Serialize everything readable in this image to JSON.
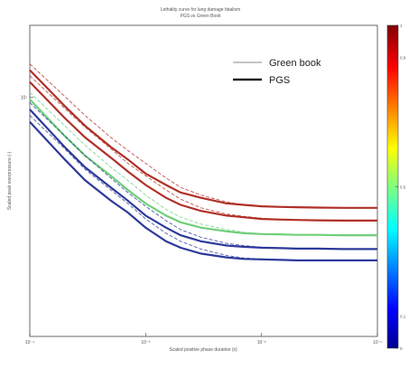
{
  "chart_data": {
    "type": "line",
    "title": "Lethality curve for lung damage fatalism",
    "subtitle": "PGS vs Green Book",
    "xlabel": "Scaled positive phase duration (s)",
    "ylabel": "Scaled peak overpressure (-)",
    "x_scale": "log",
    "y_scale": "log",
    "xlim": [
      0.0001,
      0.1
    ],
    "ylim": [
      1,
      20
    ],
    "x_ticks": [
      {
        "value": 0.0001,
        "label": "10⁻⁴"
      },
      {
        "value": 0.001,
        "label": "10⁻³"
      },
      {
        "value": 0.01,
        "label": "10⁻²"
      },
      {
        "value": 0.1,
        "label": "10⁻¹"
      }
    ],
    "y_ticks": [
      {
        "value": 10,
        "label": "10¹"
      }
    ],
    "legend": {
      "position": "top-right",
      "entries": [
        {
          "label": "Green book",
          "style": "thin"
        },
        {
          "label": "PGS",
          "style": "thick"
        }
      ]
    },
    "colorbar": {
      "range": [
        0,
        1
      ],
      "ticks": [
        {
          "value": 1.0,
          "label": "1"
        },
        {
          "value": 0.9,
          "label": "0.9"
        },
        {
          "value": 0.5,
          "label": "0.5"
        },
        {
          "value": 0.1,
          "label": "0.1"
        },
        {
          "value": 0.0,
          "label": "0"
        }
      ]
    },
    "x": [
      0.0001,
      0.0002,
      0.0003,
      0.0005,
      0.0007,
      0.001,
      0.0015,
      0.002,
      0.003,
      0.005,
      0.007,
      0.01,
      0.015,
      0.02,
      0.03,
      0.05,
      0.07,
      0.1
    ],
    "series": [
      {
        "color": "#b03028",
        "pgs": [
          13.0,
          9.2,
          7.6,
          6.2,
          5.5,
          4.8,
          4.3,
          4.0,
          3.8,
          3.6,
          3.55,
          3.5,
          3.48,
          3.47,
          3.46,
          3.45,
          3.45,
          3.45
        ],
        "green_book": [
          13.8,
          10.1,
          8.4,
          6.8,
          6.0,
          5.3,
          4.6,
          4.2,
          3.9,
          3.65,
          3.55,
          3.5,
          3.48,
          3.47,
          3.46,
          3.45,
          3.45,
          3.45
        ]
      },
      {
        "color": "#b03028",
        "pgs": [
          11.6,
          8.2,
          6.8,
          5.6,
          4.9,
          4.3,
          3.8,
          3.55,
          3.35,
          3.2,
          3.15,
          3.1,
          3.08,
          3.07,
          3.06,
          3.05,
          3.05,
          3.05
        ],
        "green_book": [
          12.3,
          9.0,
          7.5,
          6.1,
          5.3,
          4.7,
          4.1,
          3.75,
          3.45,
          3.25,
          3.18,
          3.12,
          3.09,
          3.07,
          3.06,
          3.05,
          3.05,
          3.05
        ]
      },
      {
        "color": "#6fcf7a",
        "pgs": [
          9.8,
          6.9,
          5.7,
          4.7,
          4.1,
          3.6,
          3.2,
          3.0,
          2.85,
          2.75,
          2.7,
          2.68,
          2.67,
          2.66,
          2.66,
          2.65,
          2.65,
          2.65
        ],
        "green_book": [
          10.5,
          7.6,
          6.3,
          5.1,
          4.5,
          3.9,
          3.4,
          3.15,
          2.95,
          2.8,
          2.73,
          2.69,
          2.67,
          2.66,
          2.66,
          2.65,
          2.65,
          2.65
        ]
      },
      {
        "color": "#2d3a9a",
        "pgs": [
          8.9,
          6.2,
          5.1,
          4.2,
          3.7,
          3.2,
          2.85,
          2.65,
          2.5,
          2.4,
          2.37,
          2.35,
          2.34,
          2.33,
          2.33,
          2.32,
          2.32,
          2.32
        ],
        "green_book": [
          9.5,
          6.9,
          5.7,
          4.6,
          4.0,
          3.5,
          3.05,
          2.8,
          2.6,
          2.45,
          2.4,
          2.36,
          2.34,
          2.33,
          2.33,
          2.32,
          2.32,
          2.32
        ]
      },
      {
        "color": "#2d3a9a",
        "pgs": [
          7.9,
          5.5,
          4.5,
          3.7,
          3.3,
          2.85,
          2.5,
          2.35,
          2.22,
          2.14,
          2.11,
          2.1,
          2.09,
          2.08,
          2.08,
          2.08,
          2.08,
          2.08
        ],
        "green_book": [
          8.4,
          6.1,
          5.0,
          4.1,
          3.6,
          3.1,
          2.7,
          2.5,
          2.32,
          2.18,
          2.13,
          2.11,
          2.09,
          2.08,
          2.08,
          2.08,
          2.08,
          2.08
        ]
      }
    ]
  }
}
